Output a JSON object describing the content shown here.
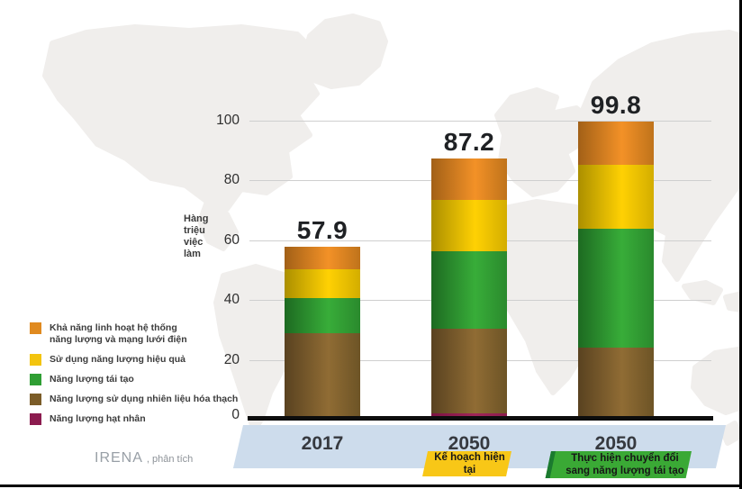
{
  "chart_data": {
    "type": "bar",
    "stacked": true,
    "title": "",
    "ylabel": "Hàng\ntriệu\nviệc\nlàm",
    "yticks": [
      0,
      20,
      40,
      60,
      80,
      100
    ],
    "ylim": [
      0,
      100
    ],
    "grid": "horizontal",
    "legend_position": "bottom-left",
    "categories": [
      "2017",
      "2050",
      "2050"
    ],
    "totals": [
      "57.9",
      "87.2",
      "99.8"
    ],
    "series": [
      {
        "name": "Năng lượng hạt nhân",
        "color_key": "nuclear",
        "values": [
          0,
          2.0,
          0
        ]
      },
      {
        "name": "Năng lượng sử dụng nhiên liệu hóa thạch",
        "color_key": "fossil",
        "values": [
          28.9,
          28.4,
          24.1
        ]
      },
      {
        "name": "Năng lượng tái tạo",
        "color_key": "renewables",
        "values": [
          11.8,
          26.0,
          39.8
        ]
      },
      {
        "name": "Sử dụng năng lượng hiệu quả",
        "color_key": "efficiency",
        "values": [
          9.6,
          17.1,
          21.4
        ]
      },
      {
        "name": "Khả năng linh hoạt hệ thống năng lượng và mạng lưới điện",
        "color_key": "flexibility",
        "values": [
          7.6,
          13.7,
          14.5
        ]
      }
    ]
  },
  "legend": {
    "items": [
      {
        "label": "Khả năng linh hoạt hệ thống\nnăng lượng và mạng lưới điện",
        "color_key": "flexibility"
      },
      {
        "label": "Sử dụng năng lượng hiệu quả",
        "color_key": "efficiency"
      },
      {
        "label": "Năng lượng tái tạo",
        "color_key": "renewables"
      },
      {
        "label": "Năng lượng sử dụng nhiên liệu hóa thạch",
        "color_key": "fossil"
      },
      {
        "label": "Năng lượng hạt nhân",
        "color_key": "nuclear"
      }
    ]
  },
  "scenario_badges": {
    "pes": "Kế hoạch hiện tại",
    "tes": "Thực hiện chuyển đổi\nsang năng lượng tái tạo"
  },
  "credit": {
    "source": "IRENA",
    "suffix": ", phân tích"
  },
  "colors": {
    "flexibility": {
      "edge": "#a26017",
      "mid": "#f39127",
      "end": "#bf731b",
      "flat": "#e08a1f"
    },
    "efficiency": {
      "edge": "#ab8f00",
      "mid": "#ffd103",
      "end": "#d3ad00",
      "flat": "#f3c40f"
    },
    "renewables": {
      "edge": "#1d6a21",
      "mid": "#38ad39",
      "end": "#2a8a2d",
      "flat": "#2f9e33"
    },
    "fossil": {
      "edge": "#594220",
      "mid": "#906c34",
      "end": "#6d5426",
      "flat": "#7b5c28"
    },
    "nuclear": {
      "edge": "#7c1343",
      "mid": "#a02658",
      "end": "#8c1c4d",
      "flat": "#8c1c4f"
    },
    "strip": "#cddcec",
    "badge_pes": "#f8c717",
    "badge_tes": "#3aa935",
    "map": "#f0eeec"
  }
}
